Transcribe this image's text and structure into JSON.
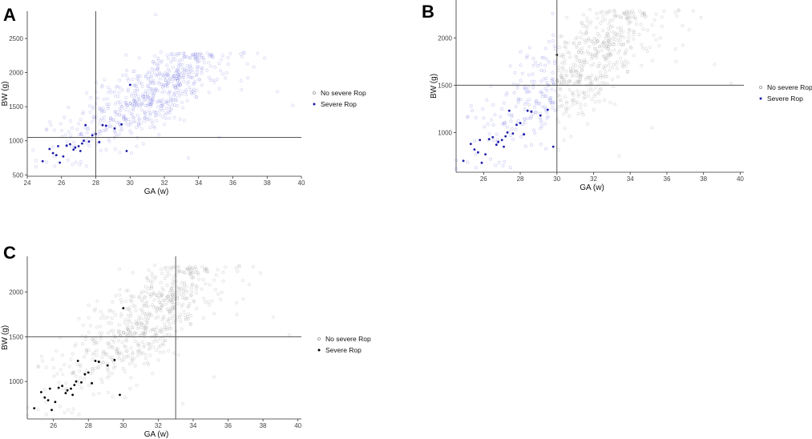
{
  "colors": {
    "no_severe_blue": "#6f6fe0",
    "no_severe_grey": "#9a9a9a",
    "severe_blue": "#1a1aa8",
    "severe_black": "#000000",
    "ref_line": "#555555",
    "axis": "#333333"
  },
  "chart_data": [
    {
      "panel": "A",
      "type": "scatter",
      "xlabel": "GA (w)",
      "ylabel": "BW (g)",
      "xlim": [
        24,
        40
      ],
      "ylim": [
        480,
        2900
      ],
      "xticks": [
        24,
        26,
        28,
        30,
        32,
        34,
        36,
        38,
        40
      ],
      "yticks": [
        500,
        1000,
        1500,
        2000,
        2500
      ],
      "ref_x": 28,
      "ref_y": 1050,
      "legend": [
        "No severe Rop",
        "Severe Rop"
      ],
      "legend_position": "right",
      "style": "blue"
    },
    {
      "panel": "B",
      "type": "scatter",
      "xlabel": "GA (w)",
      "ylabel": "BW (g)",
      "xlim": [
        24.5,
        40.2
      ],
      "ylim": [
        580,
        2400
      ],
      "xticks": [
        26,
        28,
        30,
        32,
        34,
        36,
        38,
        40
      ],
      "yticks": [
        1000,
        1500,
        2000
      ],
      "ref_x": 30,
      "ref_y": 1500,
      "legend": [
        "No severe Rop",
        "Severe Rop"
      ],
      "legend_position": "right",
      "style": "mixed"
    },
    {
      "panel": "C",
      "type": "scatter",
      "xlabel": "GA (w)",
      "ylabel": "BW (g)",
      "xlim": [
        24.5,
        40.2
      ],
      "ylim": [
        580,
        2400
      ],
      "xticks": [
        26,
        28,
        30,
        32,
        34,
        36,
        38,
        40
      ],
      "yticks": [
        1000,
        1500,
        2000
      ],
      "ref_x": 33,
      "ref_y": 1500,
      "legend": [
        "No severe Rop",
        "Severe Rop"
      ],
      "legend_position": "right",
      "style": "grey"
    }
  ],
  "severe_points": [
    [
      24.9,
      700
    ],
    [
      25.3,
      880
    ],
    [
      25.5,
      820
    ],
    [
      25.7,
      790
    ],
    [
      25.8,
      920
    ],
    [
      25.9,
      680
    ],
    [
      26.1,
      770
    ],
    [
      26.3,
      930
    ],
    [
      26.5,
      950
    ],
    [
      26.7,
      870
    ],
    [
      26.8,
      900
    ],
    [
      27.0,
      920
    ],
    [
      27.1,
      850
    ],
    [
      27.2,
      960
    ],
    [
      27.3,
      1000
    ],
    [
      27.4,
      1230
    ],
    [
      27.6,
      990
    ],
    [
      27.8,
      1080
    ],
    [
      28.0,
      1100
    ],
    [
      28.2,
      980
    ],
    [
      28.4,
      1230
    ],
    [
      28.6,
      1220
    ],
    [
      29.1,
      1180
    ],
    [
      29.5,
      1240
    ],
    [
      29.8,
      850
    ],
    [
      30.0,
      1820
    ]
  ]
}
